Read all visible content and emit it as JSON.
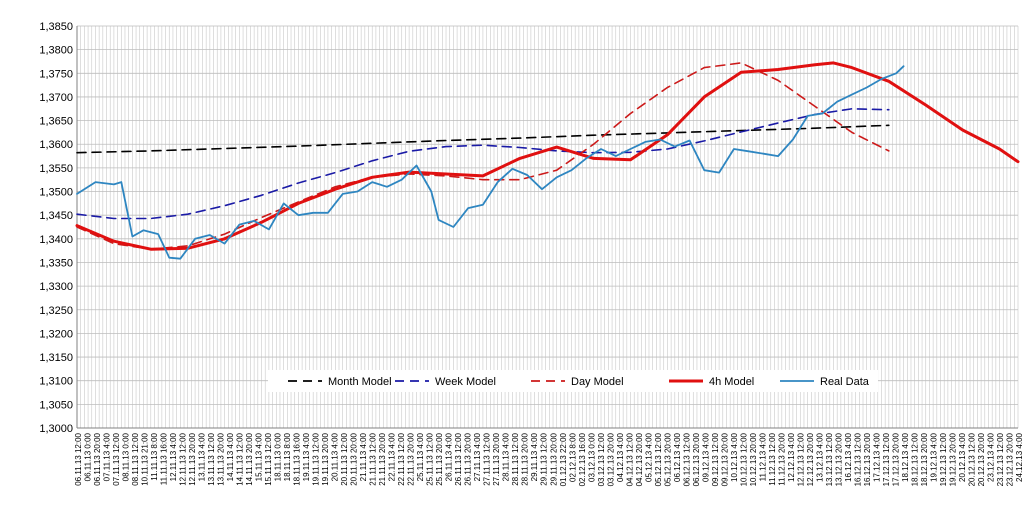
{
  "chart_data": {
    "type": "line",
    "title": "",
    "xlabel": "",
    "ylabel": "",
    "ylim": [
      1.3,
      1.385
    ],
    "yticks": [
      "1,3000",
      "1,3050",
      "1,3100",
      "1,3150",
      "1,3200",
      "1,3250",
      "1,3300",
      "1,3350",
      "1,3400",
      "1,3450",
      "1,3500",
      "1,3550",
      "1,3600",
      "1,3650",
      "1,3700",
      "1,3750",
      "1,3800",
      "1,3850"
    ],
    "xticks": [
      "06.11.13 12:00",
      "06.11.13 0:00",
      "06.11.13 20:00",
      "07.11.13 4:00",
      "07.11.13 12:00",
      "08.11.13 0:00",
      "08.11.13 12:00",
      "10.11.13 21:00",
      "11.11.13 8:00",
      "11.11.13 16:00",
      "12.11.13 4:00",
      "12.11.13 12:00",
      "12.11.13 20:00",
      "13.11.13 4:00",
      "13.11.13 12:00",
      "13.11.13 20:00",
      "14.11.13 4:00",
      "14.11.13 12:00",
      "14.11.13 20:00",
      "15.11.13 4:00",
      "15.11.13 12:00",
      "18.11.13 0:00",
      "18.11.13 8:00",
      "18.11.13 16:00",
      "19.11.13 4:00",
      "19.11.13 12:00",
      "19.11.13 20:00",
      "20.11.13 4:00",
      "20.11.13 12:00",
      "20.11.13 20:00",
      "21.11.13 4:00",
      "21.11.13 12:00",
      "21.11.13 20:00",
      "22.11.13 4:00",
      "22.11.13 12:00",
      "22.11.13 20:00",
      "25.11.13 4:00",
      "25.11.13 12:00",
      "25.11.13 20:00",
      "26.11.13 4:00",
      "26.11.13 12:00",
      "26.11.13 20:00",
      "27.11.13 4:00",
      "27.11.13 12:00",
      "27.11.13 20:00",
      "28.11.13 4:00",
      "28.11.13 12:00",
      "28.11.13 20:00",
      "29.11.13 4:00",
      "29.11.13 12:00",
      "29.11.13 20:00",
      "01.12.13 22:00",
      "02.12.13 8:00",
      "02.12.13 16:00",
      "03.12.13 0:00",
      "03.12.13 12:00",
      "03.12.13 20:00",
      "04.12.13 4:00",
      "04.12.13 12:00",
      "04.12.13 20:00",
      "05.12.13 4:00",
      "05.12.13 12:00",
      "05.12.13 20:00",
      "06.12.13 4:00",
      "06.12.13 12:00",
      "06.12.13 20:00",
      "09.12.13 4:00",
      "09.12.13 12:00",
      "09.12.13 20:00",
      "10.12.13 4:00",
      "10.12.13 12:00",
      "10.12.13 20:00",
      "11.12.13 4:00",
      "11.12.13 12:00",
      "11.12.13 20:00",
      "12.12.13 4:00",
      "12.12.13 12:00",
      "12.12.13 20:00",
      "13.12.13 4:00",
      "13.12.13 12:00",
      "13.12.13 20:00",
      "16.12.13 4:00",
      "16.12.13 12:00",
      "16.12.13 20:00",
      "17.12.13 4:00",
      "17.12.13 12:00",
      "17.12.13 20:00",
      "18.12.13 4:00",
      "18.12.13 12:00",
      "18.12.13 20:00",
      "19.12.13 4:00",
      "19.12.13 12:00",
      "19.12.13 20:00",
      "20.12.13 4:00",
      "20.12.13 12:00",
      "20.12.13 20:00",
      "23.12.13 4:00",
      "23.12.13 12:00",
      "23.12.13 20:00",
      "24.12.13 4:00"
    ],
    "grid": true,
    "legend_position": "bottom-inside",
    "series": [
      {
        "name": "Month Model",
        "color": "#000000",
        "style": "dashed",
        "points": [
          [
            0,
            1.3582
          ],
          [
            20,
            1.3586
          ],
          [
            40,
            1.3591
          ],
          [
            60,
            1.3596
          ],
          [
            80,
            1.3602
          ],
          [
            100,
            1.3608
          ],
          [
            120,
            1.3613
          ],
          [
            140,
            1.3619
          ],
          [
            160,
            1.3624
          ],
          [
            180,
            1.3629
          ],
          [
            200,
            1.3634
          ],
          [
            220,
            1.364
          ]
        ]
      },
      {
        "name": "Week Model",
        "color": "#1a1aa6",
        "style": "dashed",
        "points": [
          [
            0,
            1.3452
          ],
          [
            10,
            1.3443
          ],
          [
            20,
            1.3443
          ],
          [
            30,
            1.3452
          ],
          [
            40,
            1.347
          ],
          [
            50,
            1.3492
          ],
          [
            60,
            1.3518
          ],
          [
            70,
            1.354
          ],
          [
            80,
            1.3565
          ],
          [
            90,
            1.3585
          ],
          [
            100,
            1.3595
          ],
          [
            110,
            1.3598
          ],
          [
            120,
            1.3593
          ],
          [
            130,
            1.3586
          ],
          [
            140,
            1.3582
          ],
          [
            150,
            1.3583
          ],
          [
            160,
            1.359
          ],
          [
            170,
            1.3607
          ],
          [
            180,
            1.3626
          ],
          [
            190,
            1.3645
          ],
          [
            200,
            1.3663
          ],
          [
            210,
            1.3675
          ],
          [
            220,
            1.3673
          ]
        ]
      },
      {
        "name": "Day Model",
        "color": "#cc1a1a",
        "style": "dashed",
        "points": [
          [
            0,
            1.3425
          ],
          [
            10,
            1.339
          ],
          [
            20,
            1.3378
          ],
          [
            30,
            1.3385
          ],
          [
            40,
            1.341
          ],
          [
            50,
            1.3445
          ],
          [
            60,
            1.3478
          ],
          [
            70,
            1.351
          ],
          [
            80,
            1.353
          ],
          [
            90,
            1.3537
          ],
          [
            100,
            1.3533
          ],
          [
            110,
            1.3525
          ],
          [
            120,
            1.3525
          ],
          [
            130,
            1.3545
          ],
          [
            140,
            1.36
          ],
          [
            150,
            1.3665
          ],
          [
            160,
            1.372
          ],
          [
            170,
            1.3762
          ],
          [
            180,
            1.3772
          ],
          [
            190,
            1.3735
          ],
          [
            200,
            1.368
          ],
          [
            210,
            1.3625
          ],
          [
            220,
            1.3586
          ]
        ]
      },
      {
        "name": "4h Model",
        "color": "#e01010",
        "style": "solid",
        "points": [
          [
            0,
            1.3428
          ],
          [
            10,
            1.3395
          ],
          [
            20,
            1.3378
          ],
          [
            30,
            1.338
          ],
          [
            40,
            1.34
          ],
          [
            50,
            1.3435
          ],
          [
            60,
            1.3475
          ],
          [
            70,
            1.3505
          ],
          [
            80,
            1.353
          ],
          [
            90,
            1.3541
          ],
          [
            100,
            1.3537
          ],
          [
            110,
            1.3533
          ],
          [
            120,
            1.357
          ],
          [
            130,
            1.3594
          ],
          [
            140,
            1.357
          ],
          [
            150,
            1.3567
          ],
          [
            160,
            1.362
          ],
          [
            170,
            1.37
          ],
          [
            180,
            1.3752
          ],
          [
            190,
            1.3758
          ],
          [
            200,
            1.3768
          ],
          [
            205,
            1.3772
          ],
          [
            210,
            1.3762
          ],
          [
            220,
            1.3733
          ],
          [
            230,
            1.3683
          ],
          [
            240,
            1.363
          ],
          [
            250,
            1.359
          ],
          [
            255,
            1.3563
          ]
        ]
      },
      {
        "name": "Real Data",
        "color": "#2e86c1",
        "style": "solid",
        "points": [
          [
            0,
            1.3495
          ],
          [
            5,
            1.352
          ],
          [
            10,
            1.3515
          ],
          [
            12,
            1.352
          ],
          [
            15,
            1.3405
          ],
          [
            18,
            1.3418
          ],
          [
            22,
            1.341
          ],
          [
            25,
            1.336
          ],
          [
            28,
            1.3358
          ],
          [
            32,
            1.34
          ],
          [
            36,
            1.3408
          ],
          [
            40,
            1.339
          ],
          [
            44,
            1.343
          ],
          [
            48,
            1.3438
          ],
          [
            52,
            1.342
          ],
          [
            56,
            1.3475
          ],
          [
            60,
            1.345
          ],
          [
            64,
            1.3455
          ],
          [
            68,
            1.3455
          ],
          [
            72,
            1.3495
          ],
          [
            76,
            1.35
          ],
          [
            80,
            1.352
          ],
          [
            84,
            1.351
          ],
          [
            88,
            1.3525
          ],
          [
            92,
            1.3555
          ],
          [
            96,
            1.35
          ],
          [
            98,
            1.344
          ],
          [
            102,
            1.3425
          ],
          [
            106,
            1.3465
          ],
          [
            110,
            1.3472
          ],
          [
            114,
            1.352
          ],
          [
            118,
            1.3548
          ],
          [
            122,
            1.3535
          ],
          [
            126,
            1.3505
          ],
          [
            130,
            1.353
          ],
          [
            134,
            1.3545
          ],
          [
            138,
            1.357
          ],
          [
            142,
            1.359
          ],
          [
            146,
            1.3575
          ],
          [
            150,
            1.359
          ],
          [
            154,
            1.3605
          ],
          [
            158,
            1.361
          ],
          [
            162,
            1.3595
          ],
          [
            166,
            1.3608
          ],
          [
            170,
            1.3545
          ],
          [
            174,
            1.354
          ],
          [
            178,
            1.359
          ],
          [
            182,
            1.3585
          ],
          [
            186,
            1.358
          ],
          [
            190,
            1.3575
          ],
          [
            194,
            1.361
          ],
          [
            198,
            1.366
          ],
          [
            202,
            1.3665
          ],
          [
            206,
            1.369
          ],
          [
            210,
            1.3705
          ],
          [
            214,
            1.372
          ],
          [
            218,
            1.3738
          ],
          [
            222,
            1.375
          ],
          [
            224,
            1.3765
          ]
        ]
      }
    ]
  }
}
